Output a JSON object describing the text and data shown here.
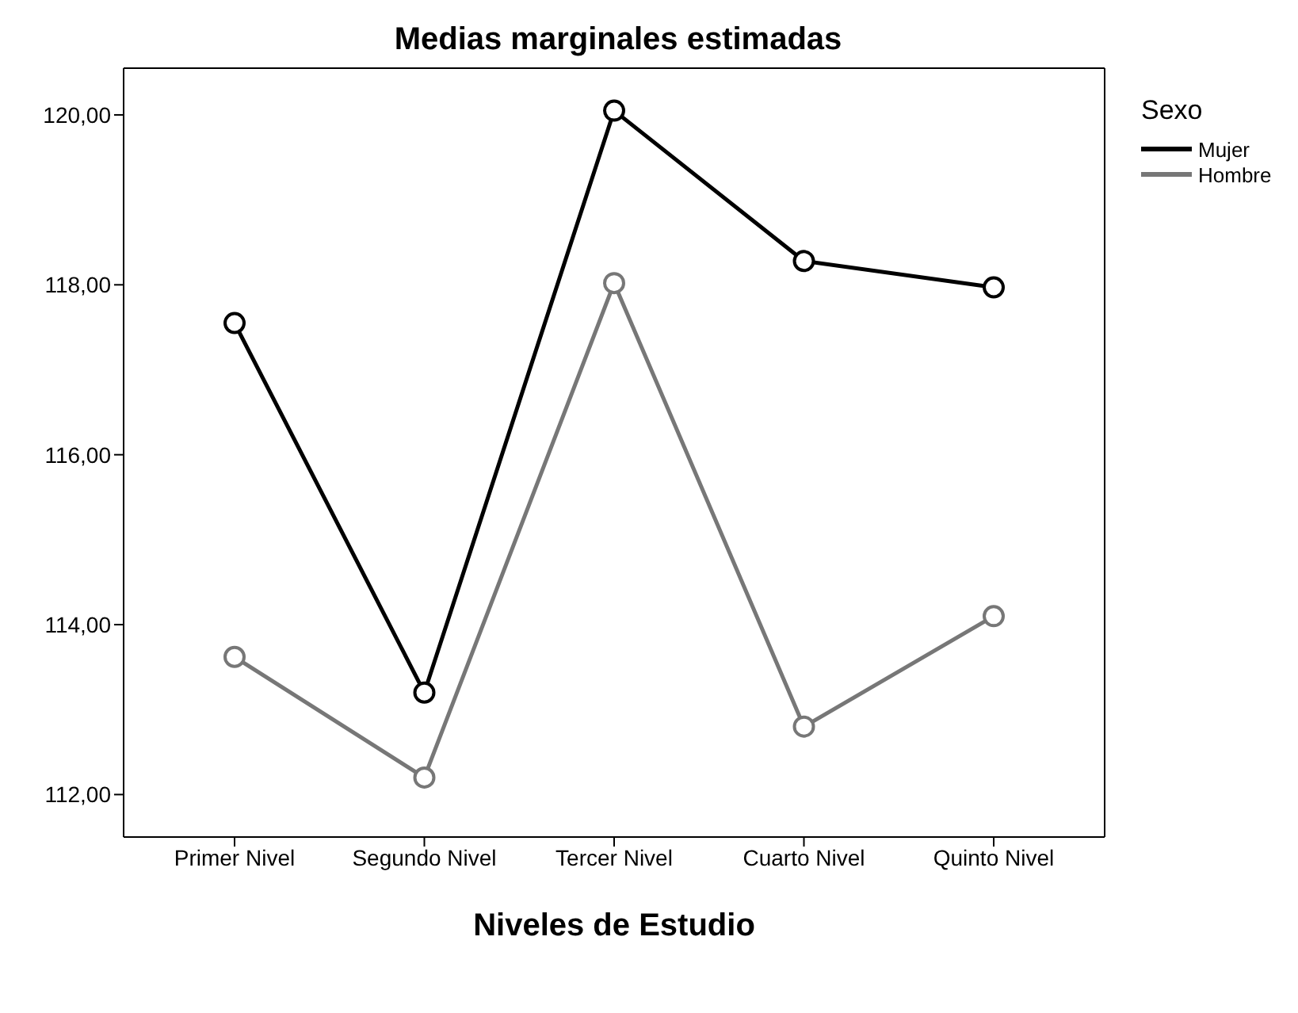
{
  "chart_data": {
    "type": "line",
    "title": "Medias marginales estimadas",
    "xlabel": "Niveles de Estudio",
    "legend_title": "Sexo",
    "categories": [
      "Primer Nivel",
      "Segundo Nivel",
      "Tercer Nivel",
      "Cuarto Nivel",
      "Quinto Nivel"
    ],
    "series": [
      {
        "name": "Mujer",
        "color": "#000000",
        "values": [
          117.55,
          113.2,
          120.05,
          118.28,
          117.97
        ]
      },
      {
        "name": "Hombre",
        "color": "#777777",
        "values": [
          113.62,
          112.2,
          118.02,
          112.8,
          114.1
        ]
      }
    ],
    "ylim": [
      111.5,
      120.55
    ],
    "yticks": [
      {
        "value": 112,
        "label": "112,00"
      },
      {
        "value": 114,
        "label": "114,00"
      },
      {
        "value": 116,
        "label": "116,00"
      },
      {
        "value": 118,
        "label": "118,00"
      },
      {
        "value": 120,
        "label": "120,00"
      }
    ],
    "marker": "circle",
    "legend": "top right",
    "grid": false
  }
}
